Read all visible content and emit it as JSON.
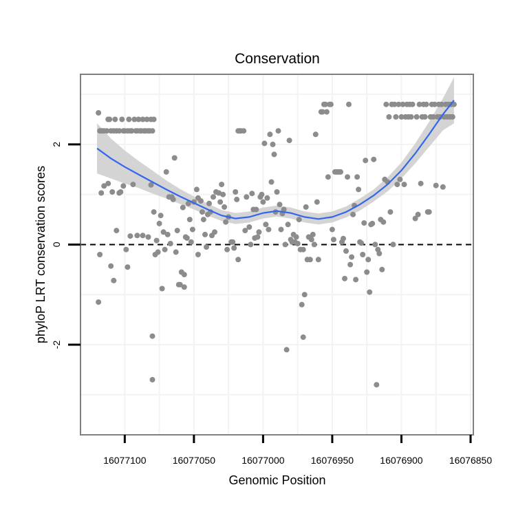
{
  "chart_data": {
    "type": "scatter",
    "title": "Conservation",
    "xlabel": "Genomic Position",
    "ylabel": "phyloP LRT conservation scores",
    "x_reversed": true,
    "xlim": [
      16077132,
      16076848
    ],
    "ylim": [
      -3.8,
      3.4
    ],
    "x_ticks": [
      {
        "value": 16077100,
        "label": "16077100"
      },
      {
        "value": 16077050,
        "label": "16077050"
      },
      {
        "value": 16077000,
        "label": "16077000"
      },
      {
        "value": 16076950,
        "label": "16076950"
      },
      {
        "value": 16076900,
        "label": "16076900"
      },
      {
        "value": 16076850,
        "label": "16076850"
      }
    ],
    "y_ticks": [
      {
        "value": -2,
        "label": "-2"
      },
      {
        "value": 0,
        "label": "0"
      },
      {
        "value": 2,
        "label": "2"
      }
    ],
    "reference_line": {
      "y": 0,
      "style": "dashed"
    },
    "grid": true,
    "colors": {
      "points": "#8c8c8c",
      "smooth": "#3366ee",
      "ribbon": "#cccccc",
      "frame": "#7f7f7f",
      "grid": "#f3f3f3"
    },
    "points": [
      [
        16077119,
        2.63
      ],
      [
        16077118,
        2.27
      ],
      [
        16077117,
        2.27
      ],
      [
        16077116,
        2.27
      ],
      [
        16077115,
        2.27
      ],
      [
        16077113,
        2.27
      ],
      [
        16077112,
        2.5
      ],
      [
        16077111,
        2.5
      ],
      [
        16077110,
        2.27
      ],
      [
        16077108,
        2.27
      ],
      [
        16077107,
        2.5
      ],
      [
        16077106,
        2.27
      ],
      [
        16077104,
        2.27
      ],
      [
        16077102,
        2.5
      ],
      [
        16077101,
        2.27
      ],
      [
        16077100,
        2.27
      ],
      [
        16077098,
        2.27
      ],
      [
        16077097,
        2.5
      ],
      [
        16077096,
        2.27
      ],
      [
        16077095,
        2.27
      ],
      [
        16077093,
        2.5
      ],
      [
        16077092,
        2.27
      ],
      [
        16077091,
        2.27
      ],
      [
        16077090,
        2.5
      ],
      [
        16077089,
        2.27
      ],
      [
        16077088,
        2.27
      ],
      [
        16077087,
        2.5
      ],
      [
        16077086,
        2.27
      ],
      [
        16077085,
        2.27
      ],
      [
        16077084,
        2.5
      ],
      [
        16077083,
        2.27
      ],
      [
        16077082,
        2.27
      ],
      [
        16077081,
        2.5
      ],
      [
        16077080,
        2.27
      ],
      [
        16077079,
        2.5
      ],
      [
        16077119,
        -1.15
      ],
      [
        16077118,
        -0.2
      ],
      [
        16077117,
        1.03
      ],
      [
        16077115,
        1.17
      ],
      [
        16077112,
        1.22
      ],
      [
        16077110,
        -0.43
      ],
      [
        16077109,
        1.05
      ],
      [
        16077108,
        -0.72
      ],
      [
        16077106,
        0.28
      ],
      [
        16077104,
        1.03
      ],
      [
        16077103,
        1.05
      ],
      [
        16077101,
        1.17
      ],
      [
        16077099,
        -0.1
      ],
      [
        16077098,
        -0.45
      ],
      [
        16077096,
        0.17
      ],
      [
        16077094,
        1.2
      ],
      [
        16077091,
        0.18
      ],
      [
        16077087,
        0.18
      ],
      [
        16077083,
        0.15
      ],
      [
        16077081,
        1.19
      ],
      [
        16077080,
        -1.83
      ],
      [
        16077080,
        -2.7
      ],
      [
        16077079,
        0.65
      ],
      [
        16077078,
        -0.2
      ],
      [
        16077077,
        0.08
      ],
      [
        16077076,
        -0.15
      ],
      [
        16077075,
        0.42
      ],
      [
        16077074,
        0.58
      ],
      [
        16077073,
        -0.88
      ],
      [
        16077072,
        0.25
      ],
      [
        16077071,
        -0.1
      ],
      [
        16077070,
        1.45
      ],
      [
        16077069,
        0.2
      ],
      [
        16077068,
        0.95
      ],
      [
        16077067,
        0.02
      ],
      [
        16077066,
        0.95
      ],
      [
        16077065,
        0.9
      ],
      [
        16077064,
        1.73
      ],
      [
        16077063,
        -0.15
      ],
      [
        16077062,
        0.28
      ],
      [
        16077061,
        -0.8
      ],
      [
        16077060,
        -0.8
      ],
      [
        16077059,
        -0.55
      ],
      [
        16077058,
        0.74
      ],
      [
        16077057,
        -0.6
      ],
      [
        16077057,
        -0.85
      ],
      [
        16077056,
        0.15
      ],
      [
        16077055,
        0.13
      ],
      [
        16077054,
        0.82
      ],
      [
        16077053,
        0.5
      ],
      [
        16077052,
        0.05
      ],
      [
        16077051,
        0.3
      ],
      [
        16077050,
        0.85
      ],
      [
        16077048,
        1.1
      ],
      [
        16077047,
        0.93
      ],
      [
        16077047,
        -0.2
      ],
      [
        16077045,
        0.87
      ],
      [
        16077044,
        0.65
      ],
      [
        16077043,
        0.5
      ],
      [
        16077042,
        0.2
      ],
      [
        16077041,
        -0.05
      ],
      [
        16077040,
        0.6
      ],
      [
        16077039,
        0.82
      ],
      [
        16077038,
        0.65
      ],
      [
        16077037,
        0.18
      ],
      [
        16077036,
        0.95
      ],
      [
        16077035,
        0.25
      ],
      [
        16077034,
        1.05
      ],
      [
        16077032,
        1.03
      ],
      [
        16077031,
        0.85
      ],
      [
        16077030,
        1.2
      ],
      [
        16077029,
        1.0
      ],
      [
        16077028,
        0.75
      ],
      [
        16077027,
        0.45
      ],
      [
        16077026,
        -0.1
      ],
      [
        16077025,
        0.55
      ],
      [
        16077023,
        0.05
      ],
      [
        16077022,
        0.05
      ],
      [
        16077021,
        -0.07
      ],
      [
        16077020,
        1.05
      ],
      [
        16077019,
        0.9
      ],
      [
        16077018,
        -0.3
      ],
      [
        16077018,
        2.27
      ],
      [
        16077017,
        2.27
      ],
      [
        16077016,
        2.27
      ],
      [
        16077014,
        2.27
      ],
      [
        16077013,
        0.28
      ],
      [
        16077012,
        0.95
      ],
      [
        16077010,
        0.35
      ],
      [
        16077009,
        0.0
      ],
      [
        16077008,
        1.02
      ],
      [
        16077007,
        0.7
      ],
      [
        16077006,
        0.13
      ],
      [
        16077005,
        0.7
      ],
      [
        16077004,
        0.15
      ],
      [
        16077003,
        0.25
      ],
      [
        16077002,
        0.95
      ],
      [
        16077001,
        1.0
      ],
      [
        16077000,
        0.85
      ],
      [
        16076999,
        2.02
      ],
      [
        16076998,
        0.4
      ],
      [
        16076997,
        0.93
      ],
      [
        16076996,
        0.3
      ],
      [
        16076995,
        2.2
      ],
      [
        16076994,
        1.25
      ],
      [
        16076993,
        2.0
      ],
      [
        16076992,
        1.8
      ],
      [
        16076991,
        0.65
      ],
      [
        16076990,
        1.05
      ],
      [
        16076989,
        2.27
      ],
      [
        16076988,
        0.8
      ],
      [
        16076987,
        0.3
      ],
      [
        16076986,
        0.62
      ],
      [
        16076985,
        0.7
      ],
      [
        16076984,
        0.0
      ],
      [
        16076983,
        -2.1
      ],
      [
        16076982,
        0.4
      ],
      [
        16076981,
        2.08
      ],
      [
        16076980,
        0.1
      ],
      [
        16076979,
        0.05
      ],
      [
        16076978,
        0.2
      ],
      [
        16076977,
        0.05
      ],
      [
        16076976,
        0.15
      ],
      [
        16076975,
        0.02
      ],
      [
        16076974,
        0.5
      ],
      [
        16076973,
        -0.1
      ],
      [
        16076972,
        -1.2
      ],
      [
        16076971,
        -1.85
      ],
      [
        16076971,
        -0.1
      ],
      [
        16076970,
        -1.0
      ],
      [
        16076969,
        0.75
      ],
      [
        16076968,
        -0.3
      ],
      [
        16076967,
        0.15
      ],
      [
        16076966,
        -0.3
      ],
      [
        16076965,
        0.1
      ],
      [
        16076964,
        0.2
      ],
      [
        16076963,
        0.0
      ],
      [
        16076962,
        2.2
      ],
      [
        16076961,
        0.85
      ],
      [
        16076960,
        -0.3
      ],
      [
        16076958,
        2.65
      ],
      [
        16076957,
        2.65
      ],
      [
        16076956,
        2.8
      ],
      [
        16076955,
        2.8
      ],
      [
        16076954,
        2.65
      ],
      [
        16076953,
        1.35
      ],
      [
        16076952,
        2.8
      ],
      [
        16076951,
        2.8
      ],
      [
        16076950,
        0.3
      ],
      [
        16076949,
        0.1
      ],
      [
        16076948,
        1.45
      ],
      [
        16076947,
        1.45
      ],
      [
        16076946,
        1.45
      ],
      [
        16076945,
        1.45
      ],
      [
        16076944,
        1.45
      ],
      [
        16076943,
        0.05
      ],
      [
        16076942,
        0.12
      ],
      [
        16076941,
        -0.68
      ],
      [
        16076940,
        -0.13
      ],
      [
        16076939,
        1.35
      ],
      [
        16076938,
        2.8
      ],
      [
        16076937,
        -0.4
      ],
      [
        16076936,
        -0.25
      ],
      [
        16076935,
        0.6
      ],
      [
        16076934,
        0.78
      ],
      [
        16076933,
        -0.7
      ],
      [
        16076932,
        1.35
      ],
      [
        16076931,
        1.1
      ],
      [
        16076930,
        0.05
      ],
      [
        16076929,
        0.03
      ],
      [
        16076928,
        -0.2
      ],
      [
        16076927,
        0.43
      ],
      [
        16076926,
        1.68
      ],
      [
        16076925,
        -0.55
      ],
      [
        16076924,
        -0.3
      ],
      [
        16076923,
        -0.95
      ],
      [
        16076922,
        0.4
      ],
      [
        16076921,
        0.42
      ],
      [
        16076920,
        1.7
      ],
      [
        16076919,
        0.0
      ],
      [
        16076918,
        -2.8
      ],
      [
        16076917,
        -0.1
      ],
      [
        16076916,
        -0.18
      ],
      [
        16076915,
        0.5
      ],
      [
        16076914,
        -0.5
      ],
      [
        16076913,
        0.45
      ],
      [
        16076912,
        1.3
      ],
      [
        16076911,
        2.8
      ],
      [
        16076910,
        1.25
      ],
      [
        16076909,
        2.55
      ],
      [
        16076908,
        0.65
      ],
      [
        16076907,
        2.8
      ],
      [
        16076906,
        0.0
      ],
      [
        16076905,
        2.8
      ],
      [
        16076904,
        2.55
      ],
      [
        16076903,
        1.2
      ],
      [
        16076902,
        2.8
      ],
      [
        16076901,
        1.3
      ],
      [
        16076900,
        2.55
      ],
      [
        16076899,
        2.8
      ],
      [
        16076898,
        1.2
      ],
      [
        16076897,
        2.55
      ],
      [
        16076896,
        2.8
      ],
      [
        16076895,
        2.55
      ],
      [
        16076894,
        2.8
      ],
      [
        16076893,
        2.55
      ],
      [
        16076892,
        2.8
      ],
      [
        16076890,
        0.52
      ],
      [
        16076889,
        2.55
      ],
      [
        16076888,
        0.6
      ],
      [
        16076887,
        2.8
      ],
      [
        16076886,
        1.22
      ],
      [
        16076885,
        2.55
      ],
      [
        16076884,
        2.8
      ],
      [
        16076883,
        2.55
      ],
      [
        16076882,
        2.8
      ],
      [
        16076881,
        0.65
      ],
      [
        16076880,
        0.65
      ],
      [
        16076879,
        2.55
      ],
      [
        16076878,
        2.8
      ],
      [
        16076877,
        2.55
      ],
      [
        16076876,
        2.8
      ],
      [
        16076875,
        1.18
      ],
      [
        16076874,
        2.55
      ],
      [
        16076873,
        2.8
      ],
      [
        16076872,
        2.55
      ],
      [
        16076871,
        2.8
      ],
      [
        16076870,
        1.15
      ],
      [
        16076869,
        2.55
      ],
      [
        16076868,
        2.8
      ],
      [
        16076867,
        2.55
      ],
      [
        16076866,
        2.8
      ],
      [
        16076865,
        2.55
      ],
      [
        16076864,
        2.8
      ],
      [
        16076863,
        2.55
      ],
      [
        16076862,
        2.8
      ]
    ],
    "smooth": {
      "x": [
        16077120,
        16077110,
        16077100,
        16077090,
        16077080,
        16077070,
        16077060,
        16077050,
        16077040,
        16077030,
        16077020,
        16077010,
        16077000,
        16076990,
        16076980,
        16076970,
        16076960,
        16076950,
        16076940,
        16076930,
        16076920,
        16076910,
        16076900,
        16076890,
        16076880,
        16076870,
        16076862
      ],
      "y": [
        1.92,
        1.72,
        1.55,
        1.4,
        1.25,
        1.1,
        0.96,
        0.83,
        0.7,
        0.58,
        0.52,
        0.55,
        0.63,
        0.67,
        0.63,
        0.55,
        0.51,
        0.55,
        0.65,
        0.8,
        0.98,
        1.2,
        1.48,
        1.82,
        2.2,
        2.6,
        2.88
      ],
      "lower": [
        1.42,
        1.32,
        1.22,
        1.13,
        1.02,
        0.92,
        0.81,
        0.7,
        0.58,
        0.47,
        0.41,
        0.44,
        0.52,
        0.56,
        0.52,
        0.44,
        0.4,
        0.44,
        0.54,
        0.68,
        0.86,
        1.06,
        1.32,
        1.62,
        1.95,
        2.28,
        2.42
      ],
      "upper": [
        2.42,
        2.12,
        1.88,
        1.67,
        1.48,
        1.28,
        1.11,
        0.96,
        0.82,
        0.69,
        0.63,
        0.66,
        0.74,
        0.78,
        0.74,
        0.66,
        0.62,
        0.66,
        0.76,
        0.92,
        1.1,
        1.34,
        1.64,
        2.02,
        2.45,
        2.92,
        3.34
      ]
    }
  }
}
